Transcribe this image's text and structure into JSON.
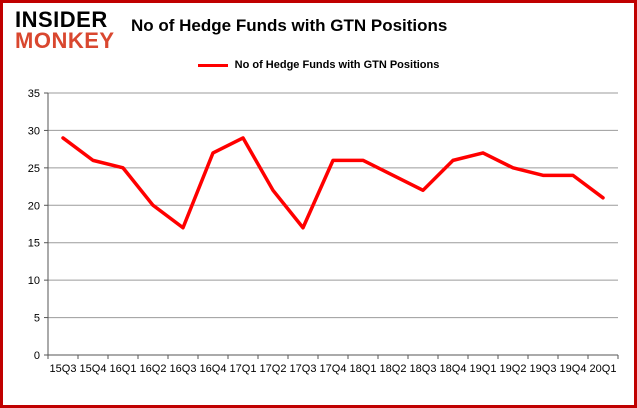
{
  "branding": {
    "logo_line1": "INSIDER",
    "logo_line2": "MONKEY",
    "logo_color_primary": "#000000",
    "logo_color_secondary": "#d9472f"
  },
  "header": {
    "title": "No of Hedge Funds with GTN Positions"
  },
  "legend": {
    "label": "No of Hedge Funds with GTN Positions",
    "line_color": "#ff0000"
  },
  "chart_data": {
    "type": "line",
    "title": "No of Hedge Funds with GTN Positions",
    "categories": [
      "15Q3",
      "15Q4",
      "16Q1",
      "16Q2",
      "16Q3",
      "16Q4",
      "17Q1",
      "17Q2",
      "17Q3",
      "17Q4",
      "18Q1",
      "18Q2",
      "18Q3",
      "18Q4",
      "19Q1",
      "19Q2",
      "19Q3",
      "19Q4",
      "20Q1"
    ],
    "series": [
      {
        "name": "No of Hedge Funds with GTN Positions",
        "color": "#ff0000",
        "values": [
          29,
          26,
          25,
          20,
          17,
          27,
          29,
          22,
          17,
          26,
          26,
          24,
          22,
          26,
          27,
          25,
          24,
          24,
          21
        ]
      }
    ],
    "xlabel": "",
    "ylabel": "",
    "ylim": [
      0,
      35
    ],
    "yticks": [
      0,
      5,
      10,
      15,
      20,
      25,
      30,
      35
    ],
    "grid": true,
    "legend_position": "top",
    "gridline_color": "#9b9b9b",
    "axis_color": "#555555",
    "tick_label_color": "#000000"
  }
}
